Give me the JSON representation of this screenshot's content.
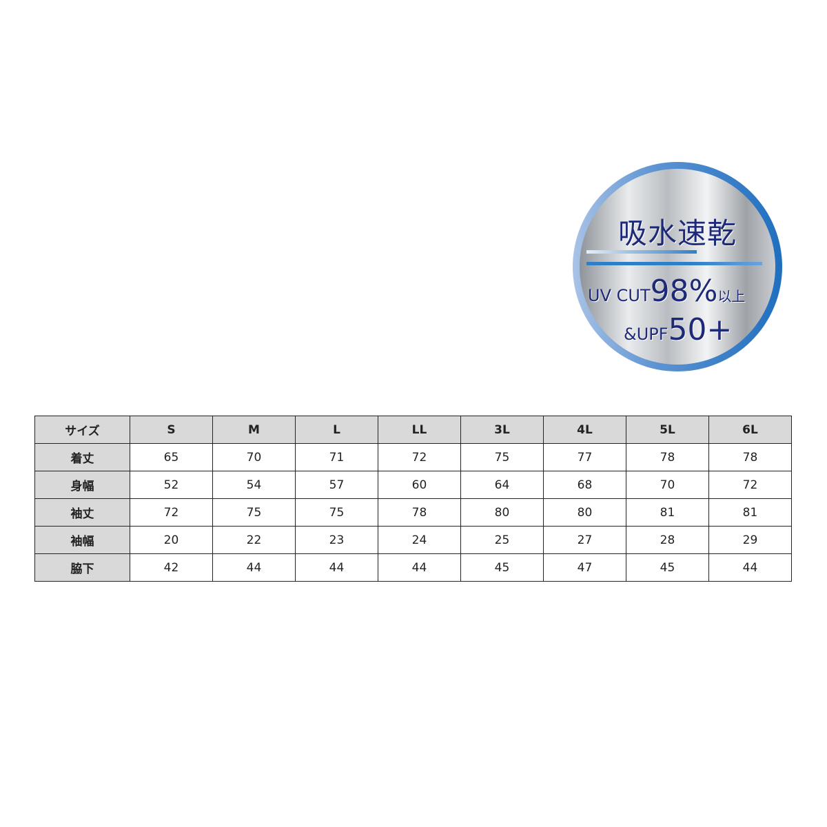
{
  "badge": {
    "title": "吸水速乾",
    "uv_prefix": "UV CUT",
    "uv_value": "98%",
    "uv_suffix": "以上",
    "upf_prefix": "&UPF",
    "upf_value": "50+",
    "colors": {
      "ring": "#1f6fbf",
      "text": "#1e2a78"
    }
  },
  "table": {
    "header": [
      "サイズ",
      "S",
      "M",
      "L",
      "LL",
      "3L",
      "4L",
      "5L",
      "6L"
    ],
    "rows": [
      {
        "label": "着丈",
        "values": [
          "65",
          "70",
          "71",
          "72",
          "75",
          "77",
          "78",
          "78"
        ]
      },
      {
        "label": "身幅",
        "values": [
          "52",
          "54",
          "57",
          "60",
          "64",
          "68",
          "70",
          "72"
        ]
      },
      {
        "label": "袖丈",
        "values": [
          "72",
          "75",
          "75",
          "78",
          "80",
          "80",
          "81",
          "81"
        ]
      },
      {
        "label": "袖幅",
        "values": [
          "20",
          "22",
          "23",
          "24",
          "25",
          "27",
          "28",
          "29"
        ]
      },
      {
        "label": "脇下",
        "values": [
          "42",
          "44",
          "44",
          "44",
          "45",
          "47",
          "45",
          "44"
        ]
      }
    ]
  }
}
